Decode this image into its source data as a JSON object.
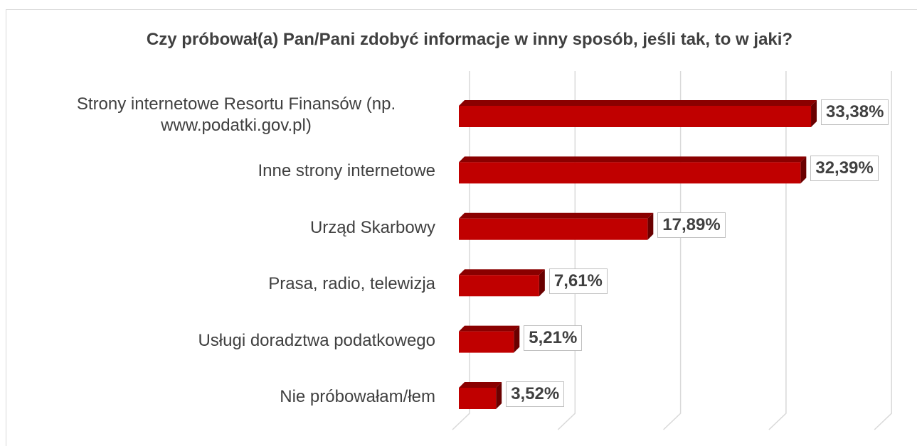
{
  "chart_data": {
    "type": "bar",
    "orientation": "horizontal",
    "title": "Czy próbował(a) Pan/Pani zdobyć informacje w inny sposób, jeśli tak, to w jaki?",
    "categories": [
      "Strony internetowe Resortu Finansów (np. www.podatki.gov.pl)",
      "Inne strony internetowe",
      "Urząd Skarbowy",
      "Prasa, radio, telewizja",
      "Usługi doradztwa podatkowego",
      "Nie próbowałam/łem"
    ],
    "values": [
      33.38,
      32.39,
      17.89,
      7.61,
      5.21,
      3.52
    ],
    "value_labels": [
      "33,38%",
      "32,39%",
      "17,89%",
      "7,61%",
      "5,21%",
      "3,52%"
    ],
    "color": "#c00000",
    "xlim": [
      0,
      40
    ],
    "xticks": [
      0,
      10,
      20,
      30,
      40
    ],
    "grid": true
  }
}
